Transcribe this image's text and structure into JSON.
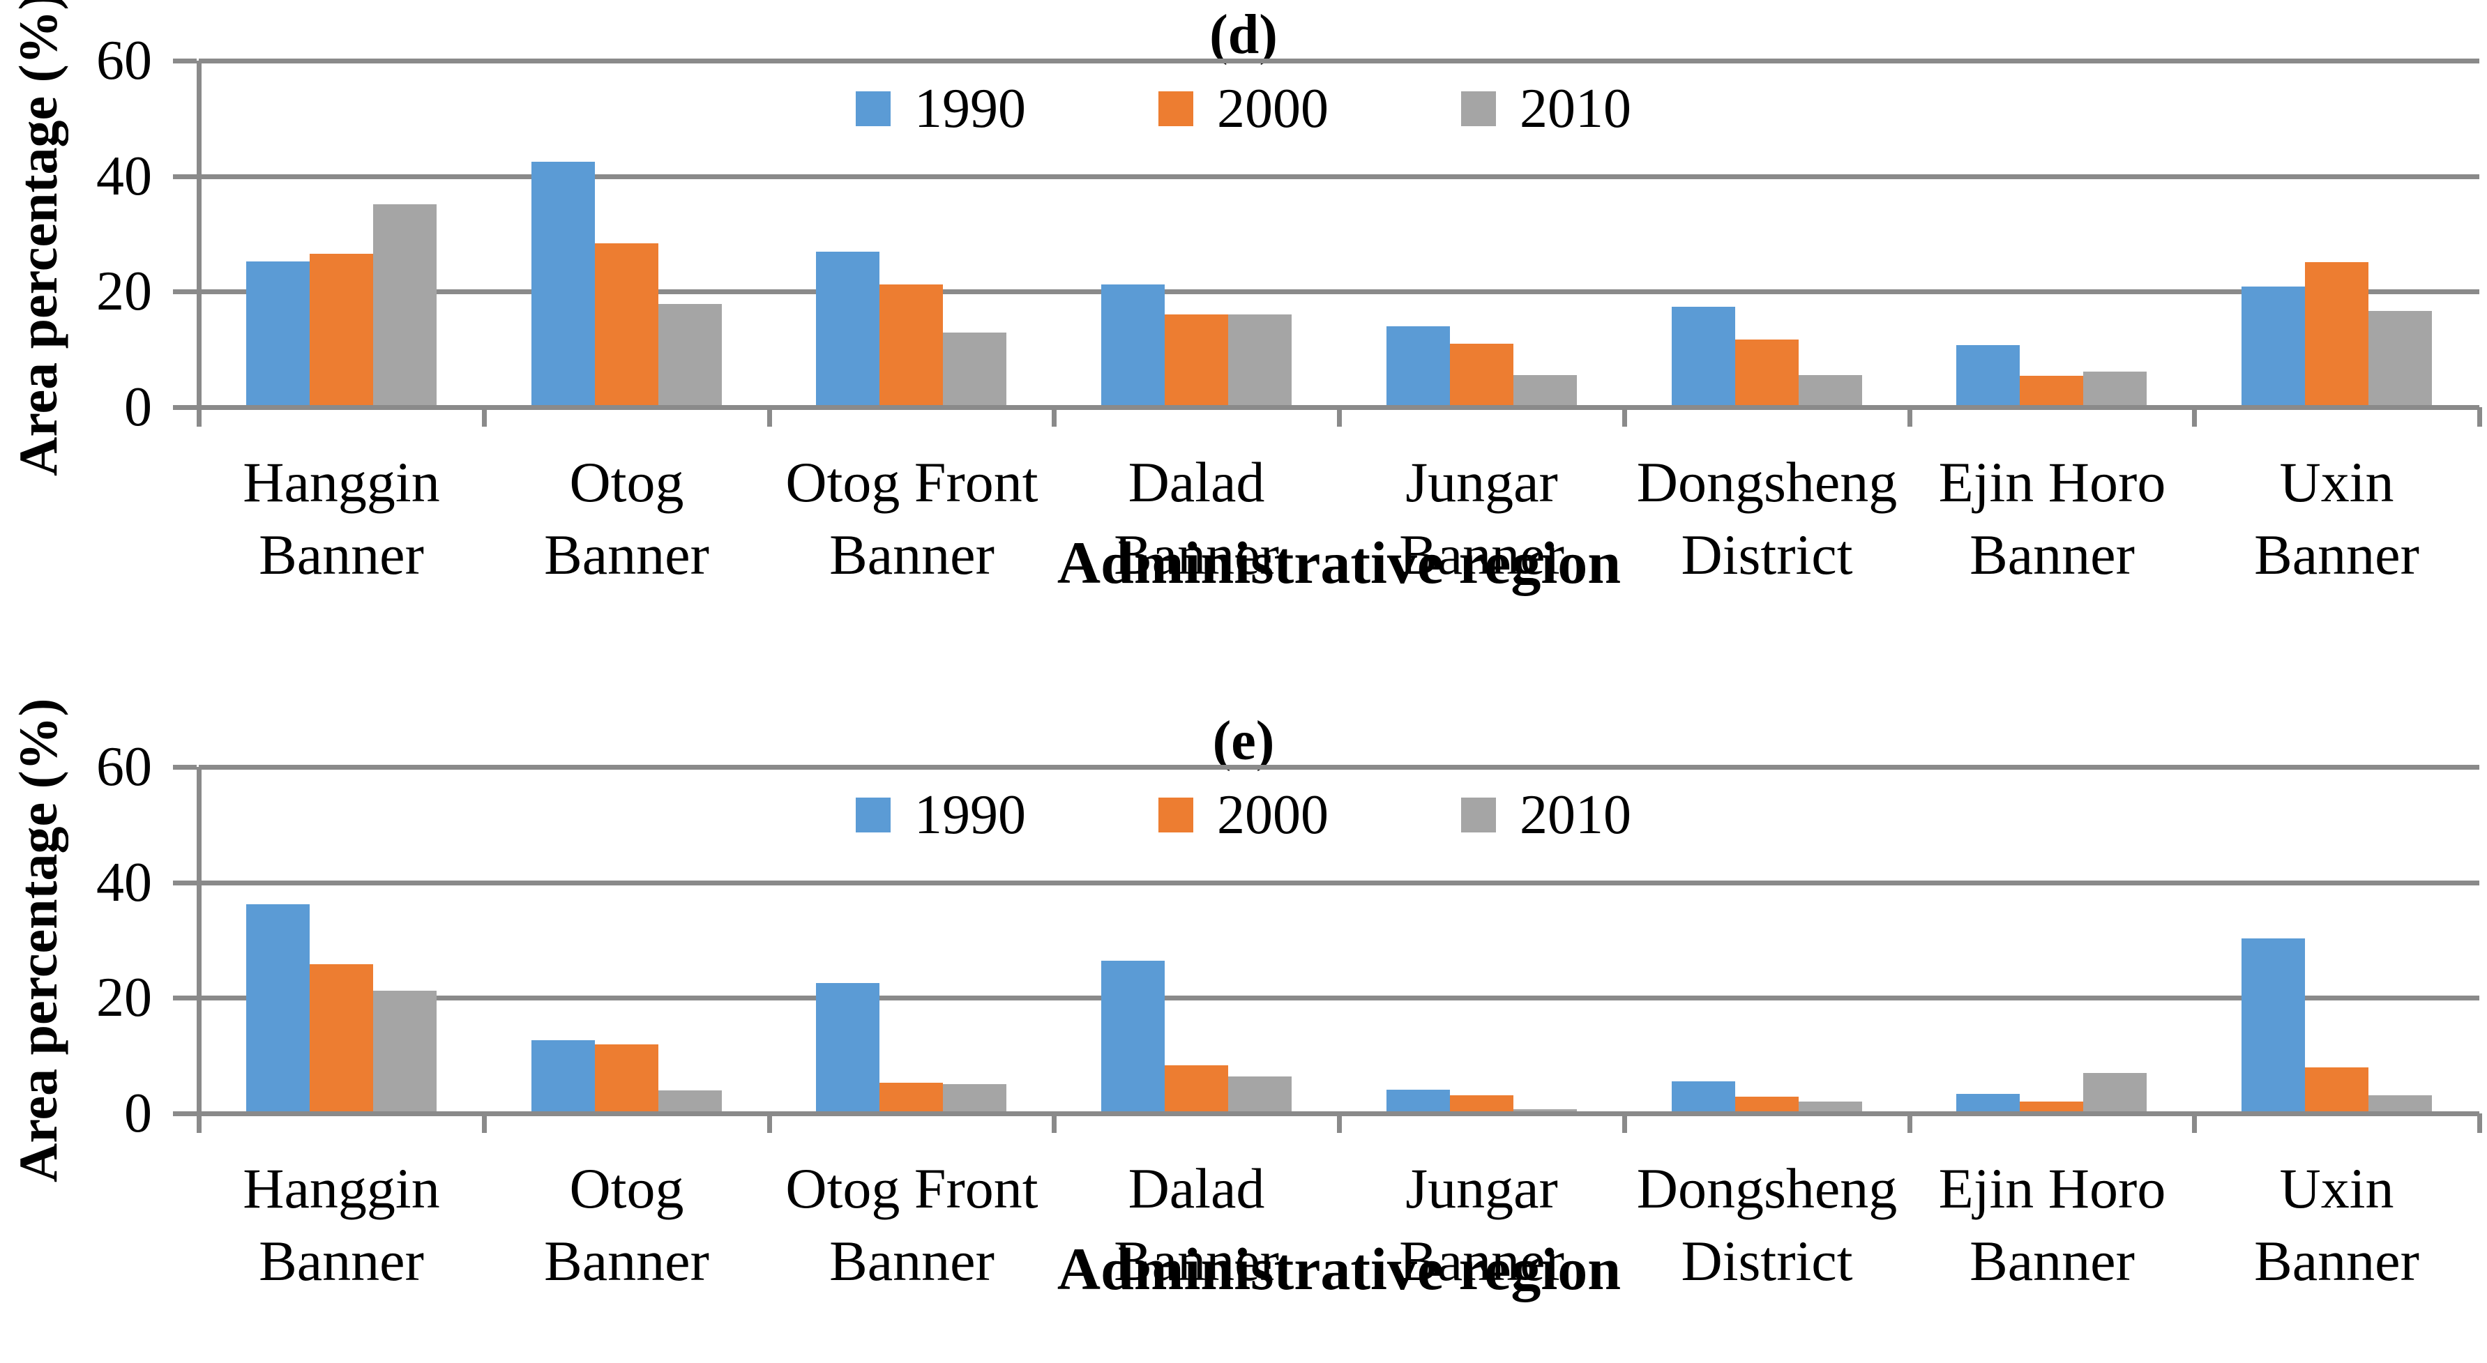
{
  "figure": {
    "panel_labels": [
      "(d)",
      "(e)"
    ]
  },
  "colors": {
    "series1990": "#5B9BD5",
    "series2000": "#ED7D31",
    "series2010": "#A5A5A5",
    "grid": "#8A8A8A",
    "axis": "#8A8A8A",
    "text": "#000000",
    "background": "#FFFFFF"
  },
  "chart_data": [
    {
      "type": "bar",
      "title": "(d)",
      "xlabel": "Administrative region",
      "ylabel": "Area percentage (%)",
      "ylim": [
        0,
        60
      ],
      "yticks": [
        0,
        20,
        40,
        60
      ],
      "grid": true,
      "legend_position": "top-center",
      "categories": [
        "Hanggin Banner",
        "Otog Banner",
        "Otog Front Banner",
        "Dalad Banner",
        "Jungar Banner",
        "Dongsheng District",
        "Ejin Horo Banner",
        "Uxin Banner"
      ],
      "series": [
        {
          "name": "1990",
          "color": "#5B9BD5",
          "values": [
            25.2,
            42.5,
            26.9,
            21.2,
            14.0,
            17.4,
            10.7,
            20.9
          ]
        },
        {
          "name": "2000",
          "color": "#ED7D31",
          "values": [
            26.5,
            28.4,
            21.2,
            16.1,
            11.0,
            11.7,
            5.4,
            25.1
          ]
        },
        {
          "name": "2010",
          "color": "#A5A5A5",
          "values": [
            35.1,
            17.9,
            12.9,
            16.1,
            5.5,
            5.6,
            6.2,
            16.6
          ]
        }
      ]
    },
    {
      "type": "bar",
      "title": "(e)",
      "xlabel": "Administrative region",
      "ylabel": "Area percentage (%)",
      "ylim": [
        0,
        60
      ],
      "yticks": [
        0,
        20,
        40,
        60
      ],
      "grid": true,
      "legend_position": "top-center",
      "categories": [
        "Hanggin Banner",
        "Otog Banner",
        "Otog Front Banner",
        "Dalad Banner",
        "Jungar Banner",
        "Dongsheng District",
        "Ejin Horo Banner",
        "Uxin Banner"
      ],
      "series": [
        {
          "name": "1990",
          "color": "#5B9BD5",
          "values": [
            36.2,
            12.7,
            22.6,
            26.4,
            4.1,
            5.6,
            3.4,
            30.3
          ]
        },
        {
          "name": "2000",
          "color": "#ED7D31",
          "values": [
            25.8,
            12.0,
            5.3,
            8.3,
            3.1,
            2.9,
            2.0,
            8.0
          ]
        },
        {
          "name": "2010",
          "color": "#A5A5A5",
          "values": [
            21.2,
            4.0,
            5.1,
            6.4,
            0.7,
            2.1,
            7.0,
            3.1
          ]
        }
      ]
    }
  ]
}
